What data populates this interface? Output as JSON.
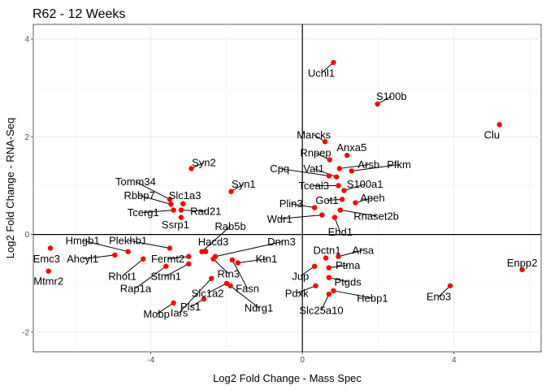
{
  "chart_data": {
    "type": "scatter",
    "title": "R62 - 12 Weeks",
    "xlabel": "Log2 Fold Change - Mass Spec",
    "ylabel": "Log2 Fold Change - RNA-Seq",
    "xlim": [
      -7.1,
      6.3
    ],
    "ylim": [
      -2.4,
      4.3
    ],
    "xticks": [
      -4,
      0,
      4
    ],
    "yticks": [
      -2,
      0,
      2,
      4
    ],
    "grid": true,
    "reference_lines": {
      "x": 0,
      "y": 0
    },
    "point_color": "#ff0000",
    "points": [
      {
        "label": "Uchl1",
        "x": 0.82,
        "y": 3.52,
        "lx": 0.5,
        "ly": 3.3
      },
      {
        "label": "S100b",
        "x": 1.98,
        "y": 2.67,
        "lx": 2.35,
        "ly": 2.83
      },
      {
        "label": "Clu",
        "x": 5.2,
        "y": 2.25,
        "lx": 5.0,
        "ly": 2.04
      },
      {
        "label": "Marcks",
        "x": 0.6,
        "y": 1.9,
        "lx": 0.3,
        "ly": 2.04
      },
      {
        "label": "Anxa5",
        "x": 1.18,
        "y": 1.62,
        "lx": 1.3,
        "ly": 1.78
      },
      {
        "label": "Rnpep",
        "x": 0.72,
        "y": 1.53,
        "lx": 0.35,
        "ly": 1.67
      },
      {
        "label": "Arsb",
        "x": 0.98,
        "y": 1.35,
        "lx": 1.75,
        "ly": 1.43
      },
      {
        "label": "Pfkm",
        "x": 1.3,
        "y": 1.3,
        "lx": 2.55,
        "ly": 1.43
      },
      {
        "label": "Cpq",
        "x": 0.7,
        "y": 1.2,
        "lx": -0.6,
        "ly": 1.35
      },
      {
        "label": "Vat1",
        "x": 0.9,
        "y": 1.18,
        "lx": 0.3,
        "ly": 1.35
      },
      {
        "label": "Tceal3",
        "x": 0.95,
        "y": 1.0,
        "lx": 0.3,
        "ly": 1.0
      },
      {
        "label": "S100a1",
        "x": 1.1,
        "y": 0.9,
        "lx": 1.65,
        "ly": 1.03
      },
      {
        "label": "Got1",
        "x": 1.05,
        "y": 0.72,
        "lx": 0.65,
        "ly": 0.7
      },
      {
        "label": "Apeh",
        "x": 1.4,
        "y": 0.65,
        "lx": 1.85,
        "ly": 0.75
      },
      {
        "label": "Plin3",
        "x": 0.32,
        "y": 0.55,
        "lx": -0.3,
        "ly": 0.63
      },
      {
        "label": "Rnaset2b",
        "x": 1.0,
        "y": 0.5,
        "lx": 1.95,
        "ly": 0.38
      },
      {
        "label": "Wdr1",
        "x": 0.52,
        "y": 0.4,
        "lx": -0.6,
        "ly": 0.32
      },
      {
        "label": "Ehd1",
        "x": 0.85,
        "y": 0.35,
        "lx": 1.0,
        "ly": 0.05
      },
      {
        "label": "Syn2",
        "x": -2.93,
        "y": 1.35,
        "lx": -2.6,
        "ly": 1.47
      },
      {
        "label": "Syn1",
        "x": -1.88,
        "y": 0.88,
        "lx": -1.55,
        "ly": 1.03
      },
      {
        "label": "Tomm34",
        "x": -3.5,
        "y": 0.72,
        "lx": -4.4,
        "ly": 1.08
      },
      {
        "label": "Rbbp7",
        "x": -3.47,
        "y": 0.62,
        "lx": -4.3,
        "ly": 0.8
      },
      {
        "label": "Slc1a3",
        "x": -3.15,
        "y": 0.63,
        "lx": -3.1,
        "ly": 0.8
      },
      {
        "label": "Tcerg1",
        "x": -3.4,
        "y": 0.5,
        "lx": -4.2,
        "ly": 0.45
      },
      {
        "label": "Rad21",
        "x": -3.2,
        "y": 0.5,
        "lx": -2.55,
        "ly": 0.48
      },
      {
        "label": "Ssrp1",
        "x": -3.2,
        "y": 0.35,
        "lx": -3.35,
        "ly": 0.2
      },
      {
        "label": "Rab5b",
        "x": -2.65,
        "y": -0.35,
        "lx": -1.9,
        "ly": 0.17
      },
      {
        "label": "Hacd3",
        "x": -2.55,
        "y": -0.35,
        "lx": -2.35,
        "ly": -0.15
      },
      {
        "label": "Hmgb1",
        "x": -4.6,
        "y": -0.35,
        "lx": -5.8,
        "ly": -0.12
      },
      {
        "label": "Plekhb1",
        "x": -3.5,
        "y": -0.28,
        "lx": -4.6,
        "ly": -0.12
      },
      {
        "label": "Emc3",
        "x": -6.65,
        "y": -0.28,
        "lx": -6.75,
        "ly": -0.5
      },
      {
        "label": "Ahcyl1",
        "x": -4.95,
        "y": -0.42,
        "lx": -5.8,
        "ly": -0.5
      },
      {
        "label": "Rhot1",
        "x": -4.2,
        "y": -0.5,
        "lx": -4.75,
        "ly": -0.85
      },
      {
        "label": "Fermt2",
        "x": -3.0,
        "y": -0.45,
        "lx": -3.55,
        "ly": -0.5
      },
      {
        "label": "Dnm3",
        "x": -2.3,
        "y": -0.45,
        "lx": -0.55,
        "ly": -0.15
      },
      {
        "label": "Ktn1",
        "x": -1.7,
        "y": -0.58,
        "lx": -0.95,
        "ly": -0.5
      },
      {
        "label": "Rap1a",
        "x": -3.6,
        "y": -0.65,
        "lx": -4.4,
        "ly": -1.1
      },
      {
        "label": "Stmn1",
        "x": -3.0,
        "y": -0.6,
        "lx": -3.6,
        "ly": -0.85
      },
      {
        "label": "Rtn3",
        "x": -2.35,
        "y": -0.5,
        "lx": -1.95,
        "ly": -0.8
      },
      {
        "label": "Fasn",
        "x": -1.85,
        "y": -0.52,
        "lx": -1.45,
        "ly": -1.1
      },
      {
        "label": "Iars",
        "x": -2.4,
        "y": -0.9,
        "lx": -3.25,
        "ly": -1.6
      },
      {
        "label": "Slc1a2",
        "x": -2.0,
        "y": -1.0,
        "lx": -2.5,
        "ly": -1.2
      },
      {
        "label": "Ndrg1",
        "x": -1.9,
        "y": -1.05,
        "lx": -1.15,
        "ly": -1.5
      },
      {
        "label": "Mtmr2",
        "x": -6.7,
        "y": -0.75,
        "lx": -6.7,
        "ly": -0.95
      },
      {
        "label": "Pls1",
        "x": -2.6,
        "y": -1.32,
        "lx": -2.95,
        "ly": -1.48
      },
      {
        "label": "Mobp",
        "x": -3.4,
        "y": -1.4,
        "lx": -3.85,
        "ly": -1.63
      },
      {
        "label": "Dctn1",
        "x": 0.62,
        "y": -0.48,
        "lx": 0.65,
        "ly": -0.32
      },
      {
        "label": "Arsa",
        "x": 0.95,
        "y": -0.45,
        "lx": 1.6,
        "ly": -0.32
      },
      {
        "label": "Jup",
        "x": 0.32,
        "y": -0.65,
        "lx": -0.05,
        "ly": -0.85
      },
      {
        "label": "Ptma",
        "x": 0.7,
        "y": -0.68,
        "lx": 1.2,
        "ly": -0.63
      },
      {
        "label": "Pdxk",
        "x": 0.35,
        "y": -1.05,
        "lx": -0.15,
        "ly": -1.2
      },
      {
        "label": "Ptgds",
        "x": 0.7,
        "y": -0.88,
        "lx": 1.2,
        "ly": -0.97
      },
      {
        "label": "Hebp1",
        "x": 0.82,
        "y": -1.15,
        "lx": 1.85,
        "ly": -1.3
      },
      {
        "label": "Slc25a10",
        "x": 0.7,
        "y": -1.22,
        "lx": 0.5,
        "ly": -1.55
      },
      {
        "label": "Eno3",
        "x": 3.9,
        "y": -1.05,
        "lx": 3.6,
        "ly": -1.27
      },
      {
        "label": "Enpp2",
        "x": 5.8,
        "y": -0.72,
        "lx": 5.8,
        "ly": -0.58
      }
    ]
  }
}
